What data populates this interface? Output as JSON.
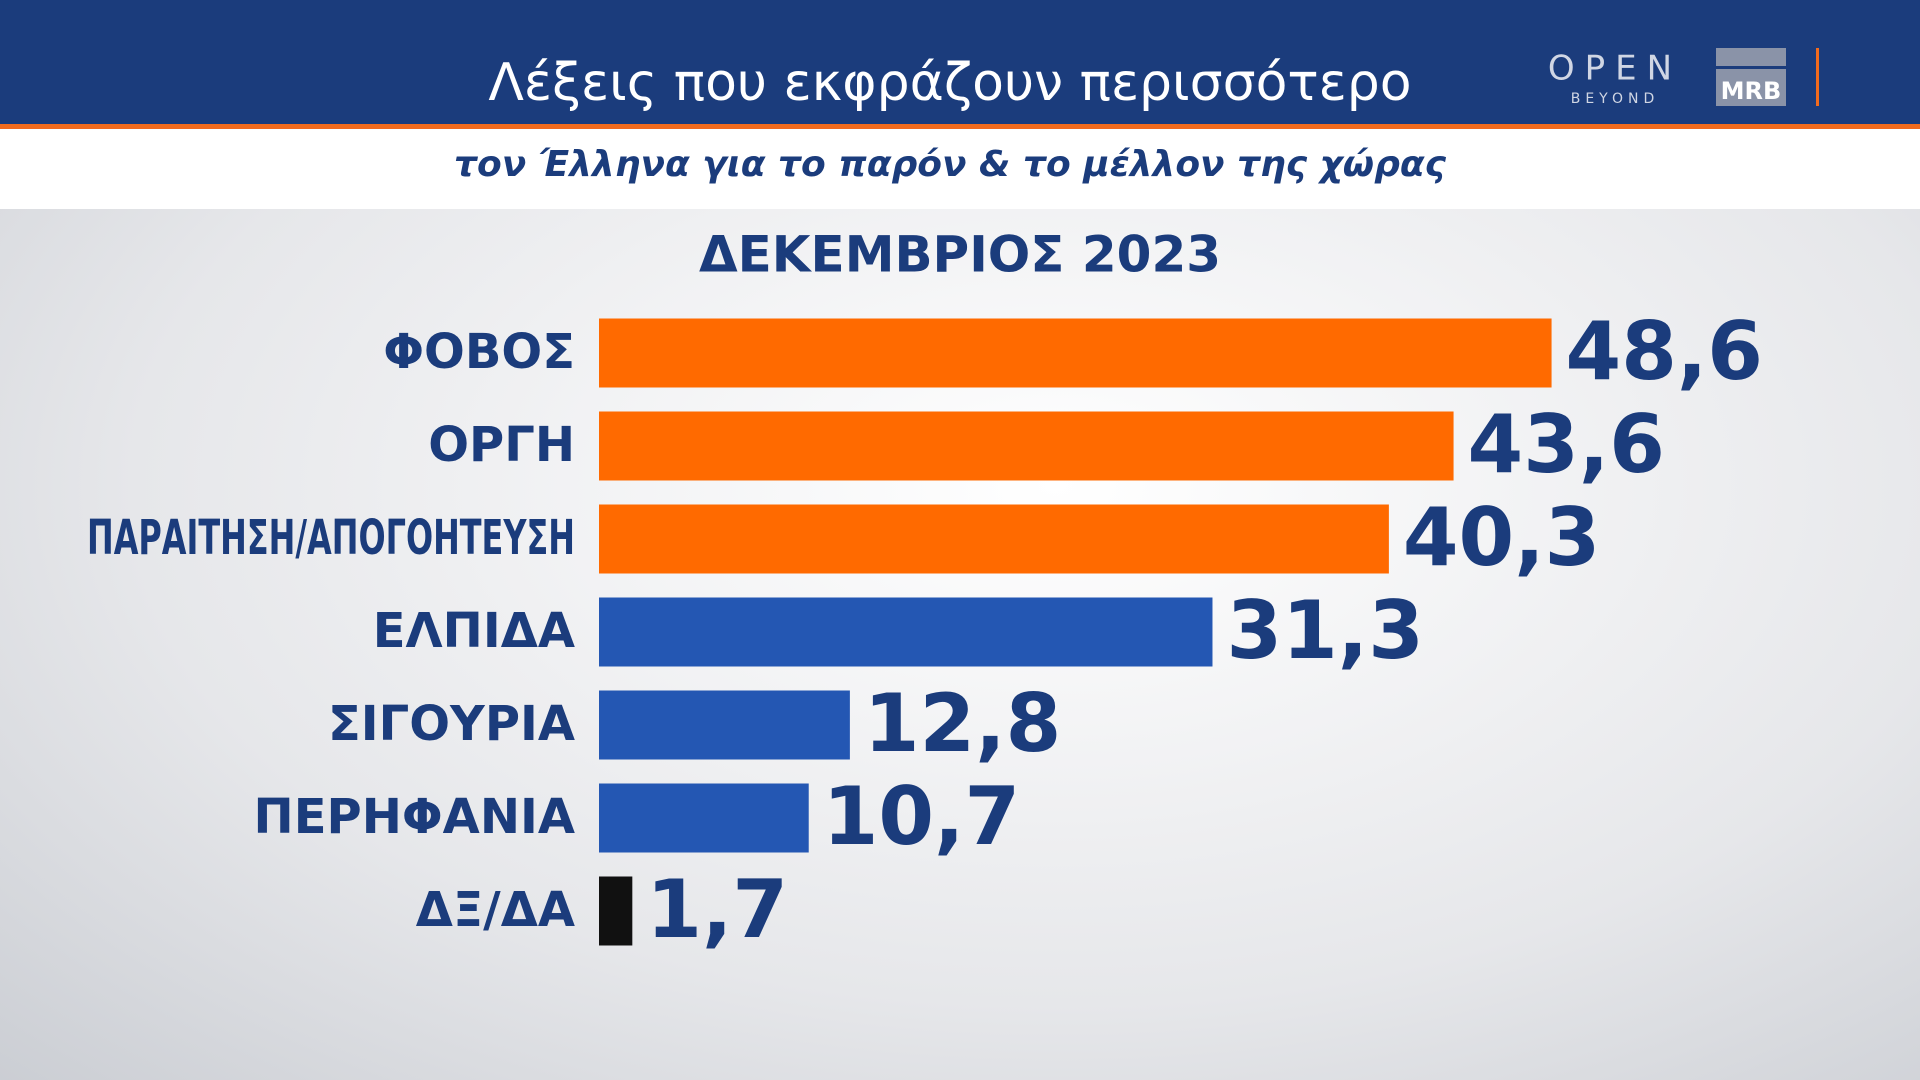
{
  "chart_data": {
    "type": "bar",
    "orientation": "horizontal",
    "title": "Λέξεις που εκφράζουν περισσότερο",
    "subtitle": "τον Έλληνα για το παρόν & το μέλλον της χώρας",
    "period": "ΔΕΚΕΜΒΡΙΟΣ 2023",
    "channel_logo": {
      "name": "OPEN",
      "tagline": "BEYOND"
    },
    "pollster_logo": "MRB",
    "categories": [
      "ΦΟΒΟΣ",
      "ΟΡΓΗ",
      "ΠΑΡΑΙΤΗΣΗ/ΑΠΟΓΟΗΤΕΥΣΗ",
      "ΕΛΠΙΔΑ",
      "ΣΙΓΟΥΡΙΑ",
      "ΠΕΡΗΦΑΝΙΑ",
      "ΔΞ/ΔΑ"
    ],
    "values": [
      48.6,
      43.6,
      40.3,
      31.3,
      12.8,
      10.7,
      1.7
    ],
    "value_labels": [
      "48,6",
      "43,6",
      "40,3",
      "31,3",
      "12,8",
      "10,7",
      "1,7"
    ],
    "colors": [
      "#ff6a00",
      "#ff6a00",
      "#ff6a00",
      "#2457b3",
      "#2457b3",
      "#2457b3",
      "#111111"
    ],
    "xlim": [
      0,
      60
    ]
  }
}
